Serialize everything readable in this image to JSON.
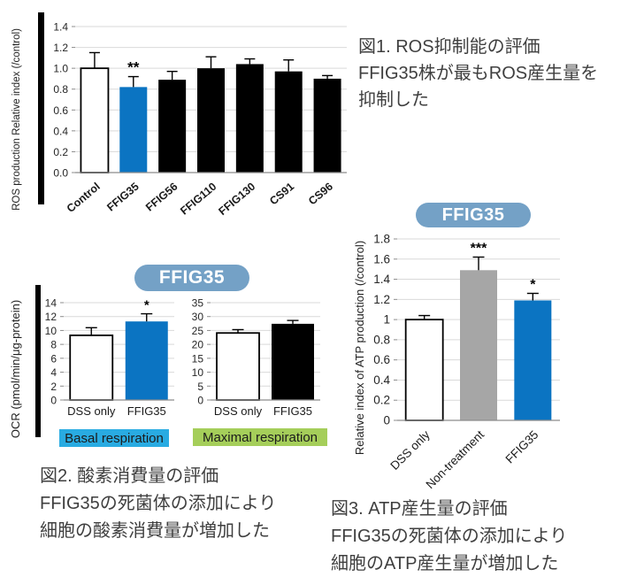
{
  "figure": {
    "captions": {
      "fig1": {
        "lines": [
          "図1. ROS抑制能の評価",
          "FFIG35株が最もROS産生量を",
          "抑制した"
        ]
      },
      "fig2": {
        "lines": [
          "図2. 酸素消費量の評価",
          "FFIG35の死菌体の添加により",
          "細胞の酸素消費量が増加した"
        ]
      },
      "fig3": {
        "lines": [
          "図3. ATP産生量の評価",
          "FFIG35の死菌体の添加により",
          "細胞のATP産生量が増加した"
        ]
      }
    },
    "badges": {
      "ocr": "FFIG35",
      "atp": "FFIG35"
    },
    "panel_tags": {
      "basal": "Basal respiration",
      "maximal": "Maximal respiration"
    }
  },
  "colors": {
    "accent_blue": "#0b74c2",
    "bar_black": "#000000",
    "bar_white": "#ffffff",
    "bar_gray": "#a6a6a6",
    "badge_blue": "#74a1c6",
    "basal_tag_bg": "#29abe2",
    "maximal_tag_bg": "#a5ce5a",
    "grid": "#d9d9d9",
    "axis": "#8c8c8c",
    "tick_text": "#262626",
    "caption_text": "#3f3f3f"
  },
  "chart_data": [
    {
      "id": "ros",
      "type": "bar",
      "title": "",
      "ylabel": "ROS production Relative index (/control)",
      "xlabel": "",
      "ylim": [
        0,
        1.4
      ],
      "ytick_step": 0.2,
      "ytick_format": "fixed1",
      "grid": true,
      "legend": "none",
      "categories": [
        "Control",
        "FFIG35",
        "FFIG56",
        "FFIG110",
        "FFIG130",
        "CS91",
        "CS96"
      ],
      "values": [
        1.0,
        0.82,
        0.89,
        1.0,
        1.04,
        0.97,
        0.9
      ],
      "errors": [
        0.15,
        0.1,
        0.08,
        0.11,
        0.05,
        0.11,
        0.03
      ],
      "significance": [
        "",
        "**",
        "",
        "",
        "",
        "",
        ""
      ],
      "bar_colors": [
        "#ffffff",
        "#0b74c2",
        "#000000",
        "#000000",
        "#000000",
        "#000000",
        "#000000"
      ],
      "x_rotated": true
    },
    {
      "id": "ocr_basal",
      "type": "bar",
      "title": "FFIG35",
      "panel_label": "Basal respiration",
      "ylabel": "OCR (pmol/min/μg-protein)",
      "xlabel": "",
      "ylim": [
        0,
        14
      ],
      "ytick_step": 2,
      "ytick_format": "int",
      "grid": true,
      "legend": "none",
      "categories": [
        "DSS only",
        "FFIG35"
      ],
      "values": [
        9.3,
        11.3
      ],
      "errors": [
        1.1,
        1.1
      ],
      "significance": [
        "",
        "*"
      ],
      "bar_colors": [
        "#ffffff",
        "#0b74c2"
      ],
      "x_rotated": false
    },
    {
      "id": "ocr_maximal",
      "type": "bar",
      "title": "FFIG35",
      "panel_label": "Maximal respiration",
      "ylabel": "",
      "xlabel": "",
      "ylim": [
        0,
        35
      ],
      "ytick_step": 5,
      "ytick_format": "int",
      "grid": true,
      "legend": "none",
      "categories": [
        "DSS only",
        "FFIG35"
      ],
      "values": [
        24.1,
        27.4
      ],
      "errors": [
        1.2,
        1.2
      ],
      "significance": [
        "",
        ""
      ],
      "bar_colors": [
        "#ffffff",
        "#000000"
      ],
      "x_rotated": false
    },
    {
      "id": "atp",
      "type": "bar",
      "title": "FFIG35",
      "ylabel": "Relative index of ATP production (/control)",
      "xlabel": "",
      "ylim": [
        0,
        1.8
      ],
      "ytick_step": 0.2,
      "ytick_format": "auto",
      "grid": true,
      "legend": "none",
      "categories": [
        "DSS only",
        "Non-treatment",
        "FFIG35"
      ],
      "values": [
        1.0,
        1.49,
        1.19
      ],
      "errors": [
        0.04,
        0.13,
        0.07
      ],
      "significance": [
        "",
        "***",
        "*"
      ],
      "bar_colors": [
        "#ffffff",
        "#a6a6a6",
        "#0b74c2"
      ],
      "x_rotated": true
    }
  ]
}
